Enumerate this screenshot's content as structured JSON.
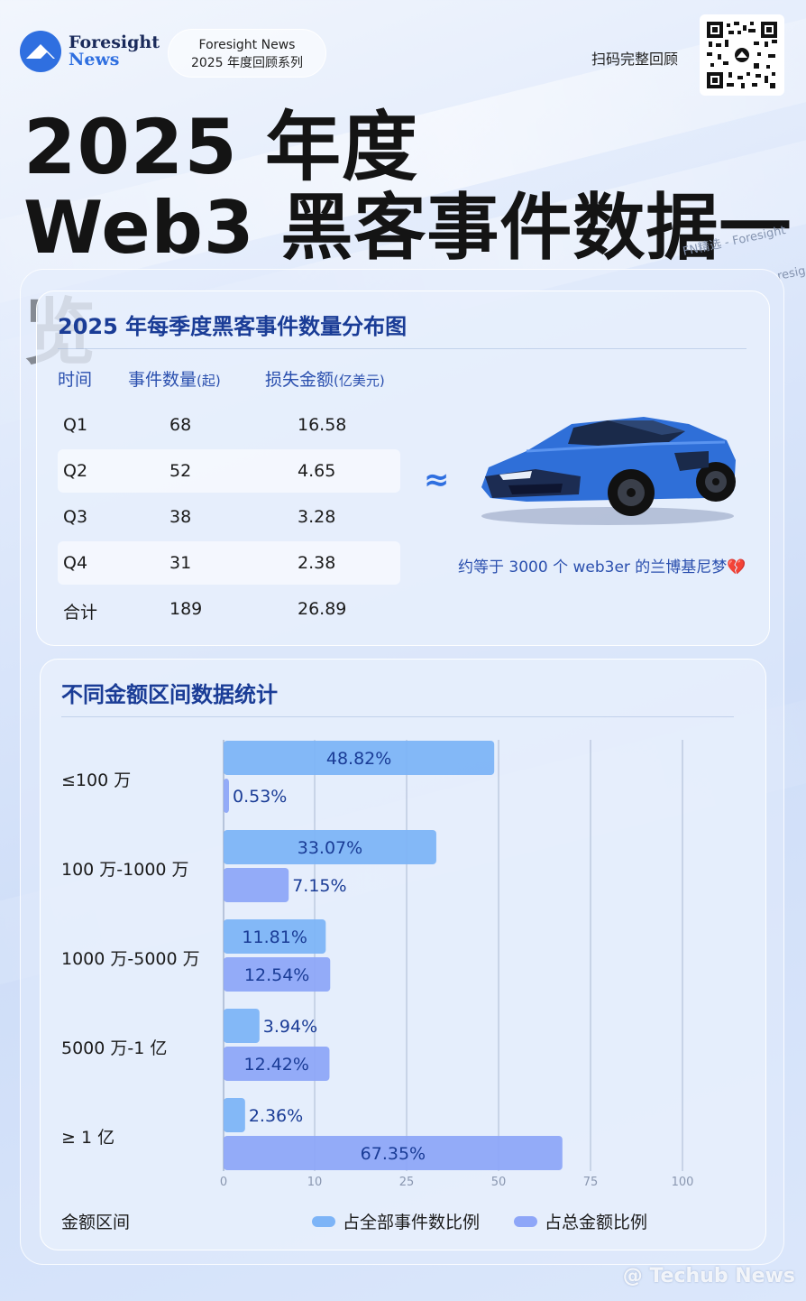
{
  "header": {
    "logo_line1": "Foresight",
    "logo_line2": "News",
    "series_line1": "Foresight News",
    "series_line2": "2025 年度回顾系列",
    "qr_label": "扫码完整回顾",
    "title_line1": "2025 年度",
    "title_line2": "Web3 黑客事件数据一览",
    "watermark": "FN精选 - Foresight",
    "watermark2": "resig"
  },
  "table_section": {
    "title": "2025 年每季度黑客事件数量分布图",
    "headers": [
      "时间",
      "事件数量",
      "(起)",
      "损失金额",
      "(亿美元)"
    ],
    "rows": [
      {
        "period": "Q1",
        "count": "68",
        "loss": "16.58"
      },
      {
        "period": "Q2",
        "count": "52",
        "loss": "4.65"
      },
      {
        "period": "Q3",
        "count": "38",
        "loss": "3.28"
      },
      {
        "period": "Q4",
        "count": "31",
        "loss": "2.38"
      },
      {
        "period": "合计",
        "count": "189",
        "loss": "26.89"
      }
    ],
    "approx_symbol": "≈",
    "car_caption": "约等于 3000 个 web3er 的兰博基尼梦",
    "heart_icon": "💔",
    "colors": {
      "accent": "#2f6fe0",
      "car_body": "#2f6fd8"
    }
  },
  "chart_section": {
    "title": "不同金额区间数据统计",
    "x_title": "金额区间"
  },
  "chart_data": {
    "type": "bar",
    "orientation": "horizontal",
    "title": "不同金额区间数据统计",
    "xlabel": "金额区间",
    "categories": [
      "≤100 万",
      "100 万-1000 万",
      "1000 万-5000 万",
      "5000 万-1 亿",
      "≥ 1 亿"
    ],
    "series": [
      {
        "name": "占全部事件数比例",
        "values": [
          48.82,
          33.07,
          11.81,
          3.94,
          2.36
        ],
        "labels": [
          "48.82%",
          "33.07%",
          "11.81%",
          "3.94%",
          "2.36%"
        ],
        "color": "#7db4f7"
      },
      {
        "name": "占总金额比例",
        "values": [
          0.53,
          7.15,
          12.54,
          12.42,
          67.35
        ],
        "labels": [
          "0.53%",
          "7.15%",
          "12.54%",
          "12.42%",
          "67.35%"
        ],
        "color": "#8ea6f8"
      }
    ],
    "x_ticks": [
      "0",
      "10",
      "25",
      "50",
      "75",
      "100"
    ],
    "x_tick_values": [
      0,
      10,
      25,
      50,
      75,
      100
    ],
    "grid": true,
    "legend_position": "bottom-right"
  },
  "footer": {
    "watermark": "@ Techub News"
  }
}
